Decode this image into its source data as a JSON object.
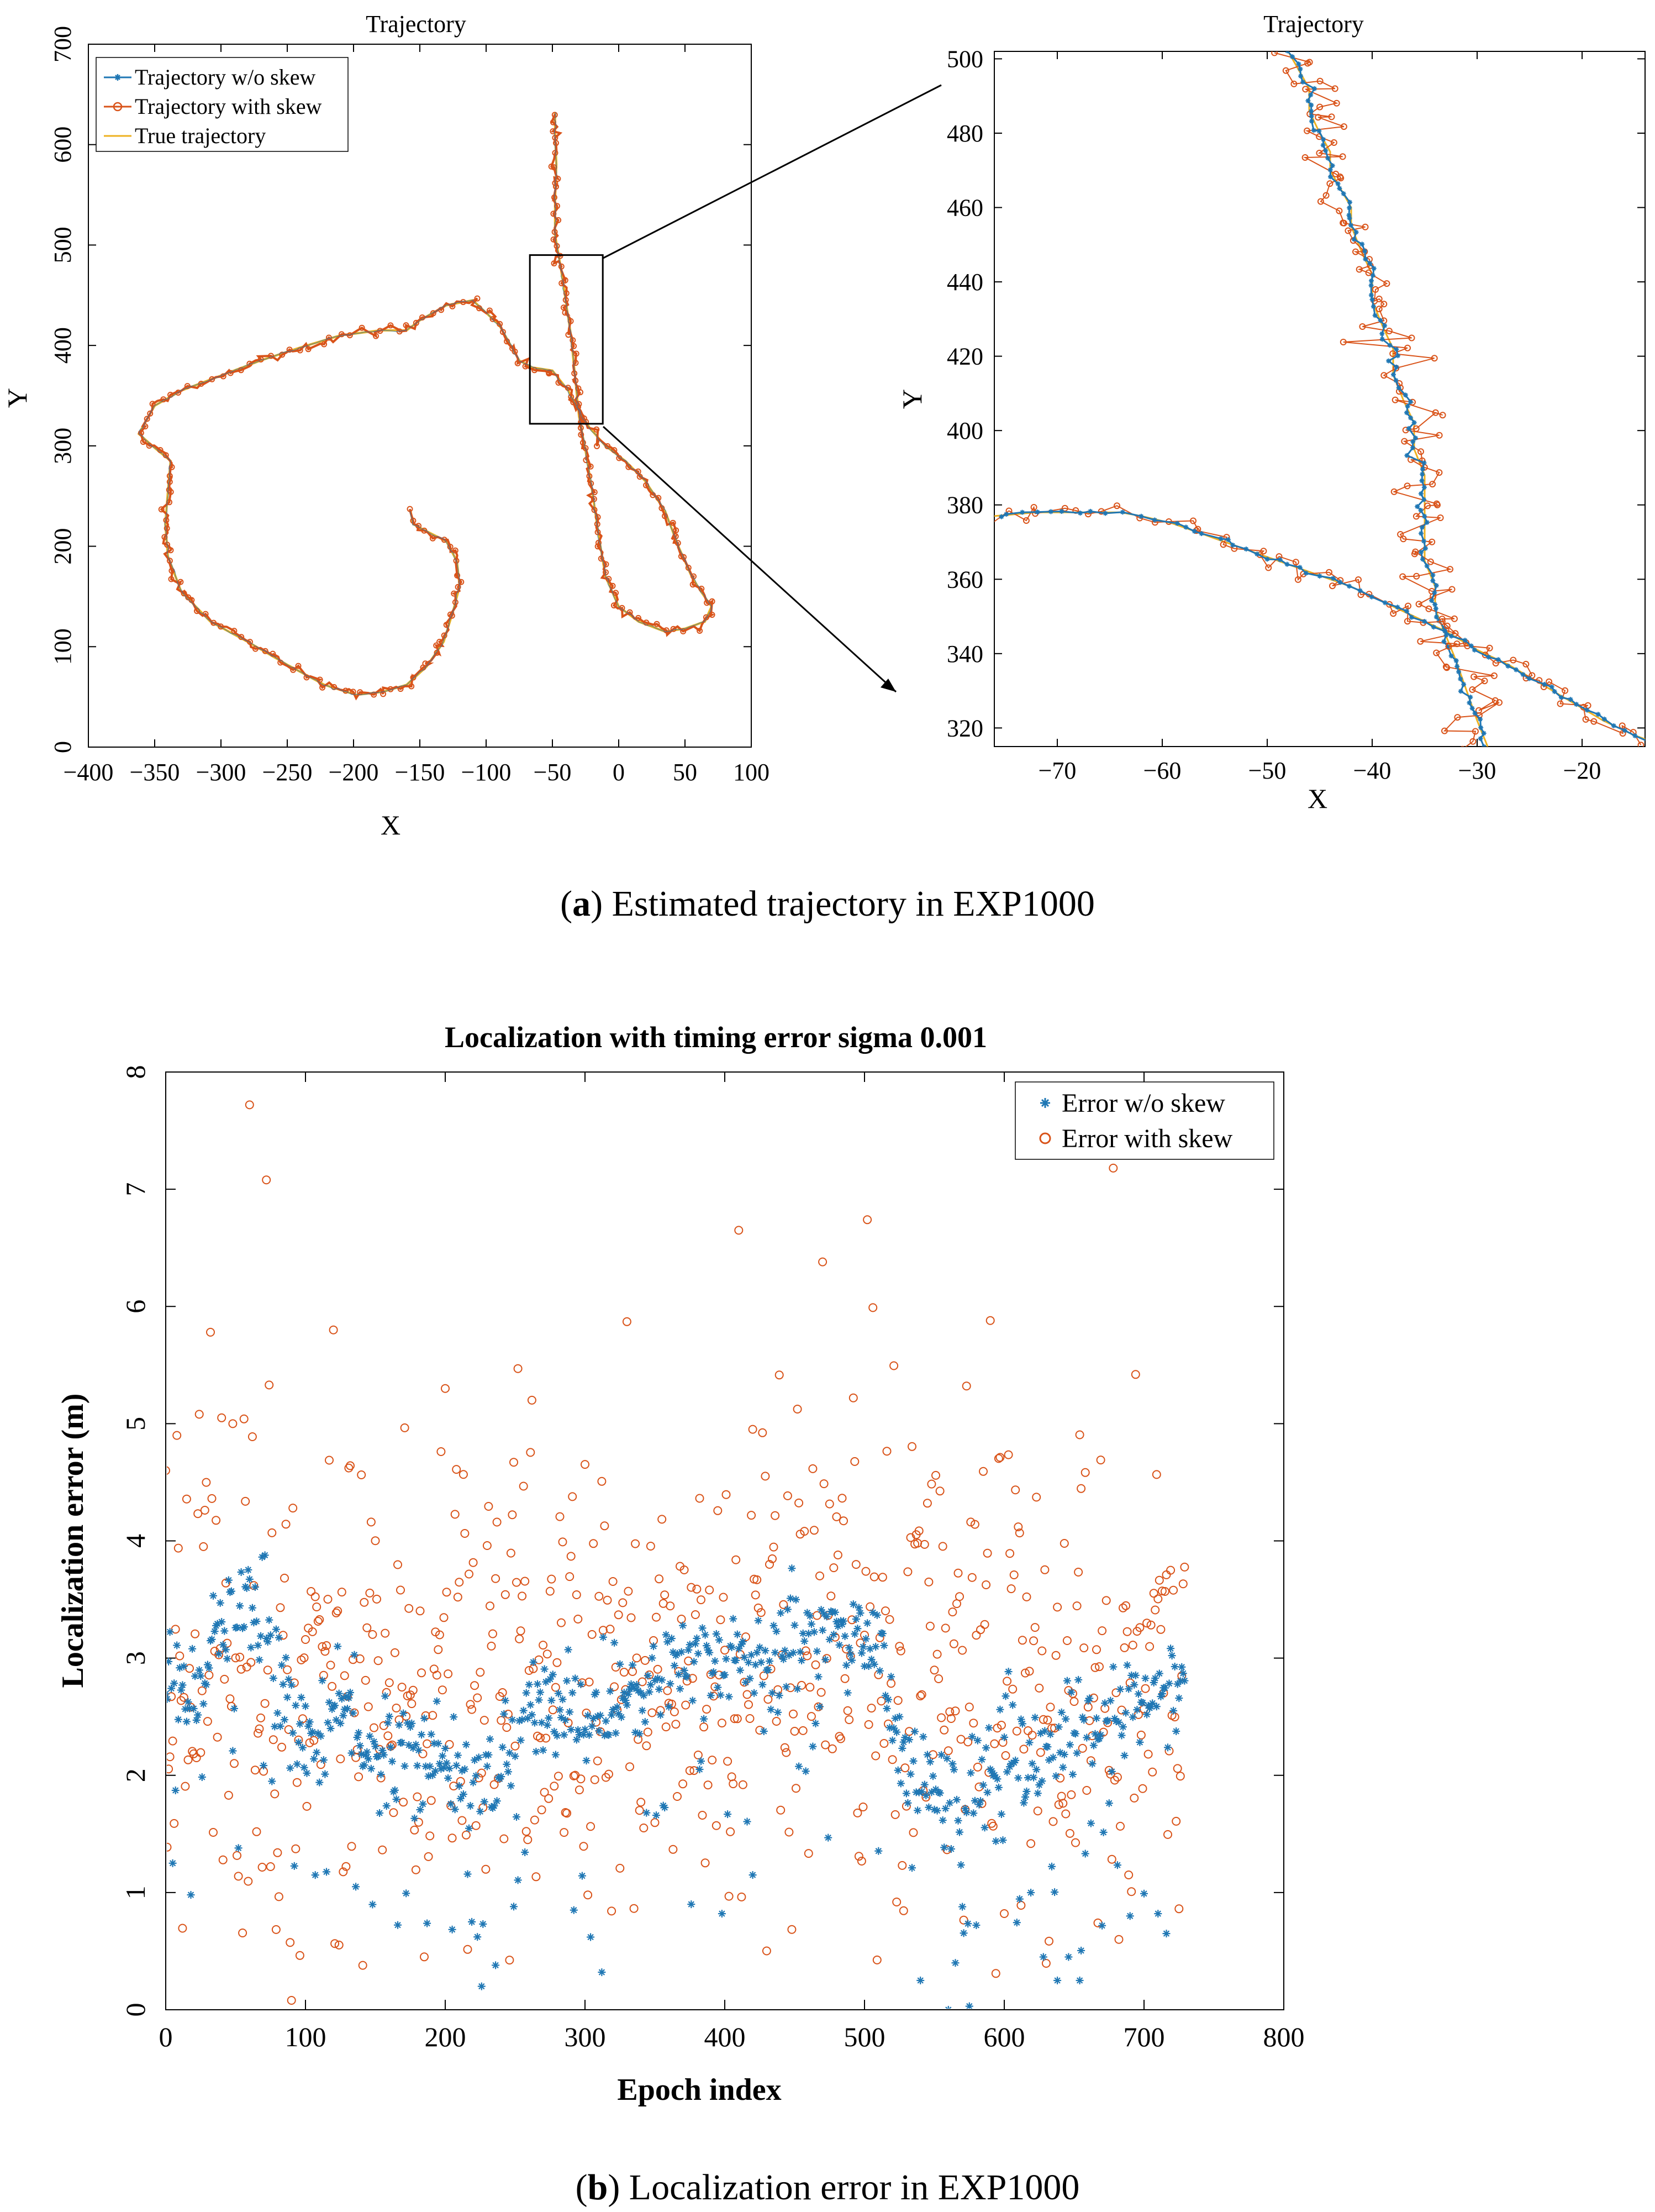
{
  "captions": {
    "a_letter": "a",
    "a_text": " Estimated trajectory in EXP1000",
    "b_letter": "b",
    "b_text": " Localization error in EXP1000"
  },
  "colors": {
    "wo_skew": "#1f77b4",
    "with_skew": "#d95319",
    "true_traj": "#edb120",
    "axes": "#000000"
  },
  "chart_data": [
    {
      "id": "trajectory-full",
      "type": "line",
      "title": "Trajectory",
      "xlabel": "X",
      "ylabel": "Y",
      "xlim": [
        -400,
        100
      ],
      "ylim": [
        0,
        700
      ],
      "xticks": [
        -400,
        -350,
        -300,
        -250,
        -200,
        -150,
        -100,
        -50,
        0,
        50,
        100
      ],
      "yticks": [
        0,
        100,
        200,
        300,
        400,
        500,
        600,
        700
      ],
      "legend": [
        "Trajectory w/o skew",
        "Trajectory with skew",
        "True trajectory"
      ],
      "legend_position": "top-left",
      "zoom_box": {
        "x": [
          -67,
          -12
        ],
        "y": [
          322,
          490
        ]
      },
      "path": [
        [
          -157,
          235
        ],
        [
          -155,
          222
        ],
        [
          -145,
          215
        ],
        [
          -130,
          205
        ],
        [
          -122,
          185
        ],
        [
          -120,
          160
        ],
        [
          -125,
          135
        ],
        [
          -132,
          105
        ],
        [
          -145,
          80
        ],
        [
          -160,
          62
        ],
        [
          -178,
          55
        ],
        [
          -198,
          52
        ],
        [
          -222,
          62
        ],
        [
          -250,
          82
        ],
        [
          -280,
          105
        ],
        [
          -308,
          125
        ],
        [
          -330,
          155
        ],
        [
          -340,
          190
        ],
        [
          -342,
          222
        ],
        [
          -340,
          255
        ],
        [
          -338,
          285
        ],
        [
          -350,
          298
        ],
        [
          -362,
          312
        ],
        [
          -350,
          340
        ],
        [
          -330,
          355
        ],
        [
          -300,
          370
        ],
        [
          -270,
          385
        ],
        [
          -240,
          398
        ],
        [
          -210,
          410
        ],
        [
          -180,
          415
        ],
        [
          -160,
          415
        ],
        [
          -150,
          425
        ],
        [
          -130,
          440
        ],
        [
          -110,
          445
        ],
        [
          -90,
          420
        ],
        [
          -75,
          385
        ],
        [
          -65,
          378
        ],
        [
          -50,
          375
        ],
        [
          -38,
          355
        ],
        [
          -30,
          335
        ],
        [
          -22,
          318
        ],
        [
          -10,
          300
        ],
        [
          5,
          285
        ],
        [
          20,
          265
        ],
        [
          35,
          235
        ],
        [
          45,
          200
        ],
        [
          55,
          170
        ],
        [
          62,
          155
        ],
        [
          70,
          140
        ],
        [
          65,
          125
        ],
        [
          50,
          118
        ],
        [
          35,
          115
        ],
        [
          15,
          125
        ],
        [
          0,
          140
        ],
        [
          -10,
          170
        ],
        [
          -15,
          210
        ],
        [
          -20,
          255
        ],
        [
          -25,
          295
        ],
        [
          -30,
          330
        ],
        [
          -33,
          370
        ],
        [
          -36,
          410
        ],
        [
          -40,
          445
        ],
        [
          -44,
          480
        ],
        [
          -48,
          510
        ],
        [
          -48,
          545
        ],
        [
          -47,
          580
        ],
        [
          -48,
          610
        ],
        [
          -48,
          632
        ]
      ]
    },
    {
      "id": "trajectory-zoom",
      "type": "line",
      "title": "Trajectory",
      "xlabel": "X",
      "ylabel": "Y",
      "xlim": [
        -76,
        -14
      ],
      "ylim": [
        315,
        502
      ],
      "xticks": [
        -70,
        -60,
        -50,
        -40,
        -30,
        -20
      ],
      "yticks": [
        320,
        340,
        360,
        380,
        400,
        420,
        440,
        460,
        480,
        500
      ],
      "vertical_path": [
        [
          -29,
          315
        ],
        [
          -30,
          322
        ],
        [
          -31,
          330
        ],
        [
          -32,
          338
        ],
        [
          -33,
          345
        ],
        [
          -34,
          352
        ],
        [
          -34,
          358
        ],
        [
          -35,
          365
        ],
        [
          -35,
          372
        ],
        [
          -35,
          380
        ],
        [
          -35,
          388
        ],
        [
          -36,
          395
        ],
        [
          -36,
          402
        ],
        [
          -37,
          408
        ],
        [
          -38,
          415
        ],
        [
          -38,
          422
        ],
        [
          -39,
          428
        ],
        [
          -40,
          435
        ],
        [
          -40,
          442
        ],
        [
          -41,
          448
        ],
        [
          -42,
          455
        ],
        [
          -42,
          460
        ],
        [
          -43,
          465
        ],
        [
          -44,
          470
        ],
        [
          -44,
          475
        ],
        [
          -45,
          480
        ],
        [
          -46,
          486
        ],
        [
          -46,
          492
        ],
        [
          -47,
          497
        ],
        [
          -48,
          502
        ]
      ],
      "diagonal_path": [
        [
          -76,
          377
        ],
        [
          -72,
          378
        ],
        [
          -68,
          378
        ],
        [
          -64,
          378
        ],
        [
          -62,
          377
        ],
        [
          -59,
          375
        ],
        [
          -56,
          372
        ],
        [
          -52,
          368
        ],
        [
          -48,
          364
        ],
        [
          -45,
          361
        ],
        [
          -42,
          358
        ],
        [
          -39,
          354
        ],
        [
          -36,
          350
        ],
        [
          -33,
          346
        ],
        [
          -30,
          341
        ],
        [
          -27,
          337
        ],
        [
          -24,
          332
        ],
        [
          -21,
          327
        ],
        [
          -18,
          322
        ],
        [
          -15,
          318
        ],
        [
          -14,
          317
        ]
      ]
    },
    {
      "id": "localization-error",
      "type": "scatter",
      "title": "Localization with timing error sigma 0.001",
      "xlabel": "Epoch index",
      "ylabel": "Localization error (m)",
      "xlim": [
        0,
        800
      ],
      "ylim": [
        0,
        8
      ],
      "xticks": [
        0,
        100,
        200,
        300,
        400,
        500,
        600,
        700,
        800
      ],
      "yticks": [
        0,
        1,
        2,
        3,
        4,
        5,
        6,
        7,
        8
      ],
      "legend": [
        "Error w/o skew",
        "Error with skew"
      ],
      "legend_position": "top-right",
      "n_points": 730,
      "series": [
        {
          "name": "Error w/o skew",
          "marker": "asterisk",
          "trend": [
            [
              0,
              2.7
            ],
            [
              20,
              2.9
            ],
            [
              40,
              3.3
            ],
            [
              70,
              3.4
            ],
            [
              90,
              2.4
            ],
            [
              110,
              2.3
            ],
            [
              130,
              2.6
            ],
            [
              150,
              2.1
            ],
            [
              180,
              2.2
            ],
            [
              210,
              2.0
            ],
            [
              240,
              2.1
            ],
            [
              260,
              2.6
            ],
            [
              290,
              2.5
            ],
            [
              320,
              2.6
            ],
            [
              350,
              2.8
            ],
            [
              380,
              3.0
            ],
            [
              420,
              3.0
            ],
            [
              450,
              3.2
            ],
            [
              480,
              3.2
            ],
            [
              510,
              3.1
            ],
            [
              530,
              2.0
            ],
            [
              560,
              1.8
            ],
            [
              590,
              2.0
            ],
            [
              620,
              2.1
            ],
            [
              650,
              2.4
            ],
            [
              680,
              2.5
            ],
            [
              700,
              2.6
            ],
            [
              730,
              2.8
            ]
          ],
          "outliers": [
            [
              5,
              1.25
            ],
            [
              18,
              0.98
            ],
            [
              52,
              1.38
            ],
            [
              136,
              1.05
            ],
            [
              219,
              0.75
            ],
            [
              226,
              0.2
            ],
            [
              236,
              0.38
            ],
            [
              249,
              0.88
            ],
            [
              292,
              0.85
            ],
            [
              304,
              0.62
            ],
            [
              312,
              0.32
            ],
            [
              376,
              0.9
            ],
            [
              398,
              0.82
            ],
            [
              420,
              1.15
            ],
            [
              540,
              0.25
            ],
            [
              560,
              0.0
            ],
            [
              565,
              0.4
            ],
            [
              575,
              0.03
            ],
            [
              628,
              0.45
            ],
            [
              638,
              0.25
            ],
            [
              646,
              0.45
            ],
            [
              654,
              0.25
            ],
            [
              690,
              0.8
            ],
            [
              710,
              0.82
            ],
            [
              716,
              0.65
            ]
          ]
        },
        {
          "name": "Error with skew",
          "marker": "circle",
          "mean": 2.7,
          "spread": 1.0,
          "peaks": [
            [
              0,
              4.6
            ],
            [
              8,
              4.9
            ],
            [
              24,
              5.08
            ],
            [
              32,
              5.78
            ],
            [
              40,
              5.05
            ],
            [
              48,
              5.0
            ],
            [
              60,
              7.72
            ],
            [
              72,
              7.08
            ],
            [
              74,
              5.33
            ],
            [
              90,
              0.08
            ],
            [
              120,
              5.8
            ],
            [
              200,
              5.3
            ],
            [
              230,
              3.96
            ],
            [
              252,
              5.47
            ],
            [
              262,
              5.2
            ],
            [
              330,
              5.87
            ],
            [
              410,
              6.65
            ],
            [
              470,
              6.38
            ],
            [
              502,
              6.74
            ],
            [
              506,
              5.99
            ],
            [
              590,
              5.88
            ],
            [
              678,
              7.18
            ],
            [
              694,
              5.42
            ],
            [
              682,
              0.6
            ]
          ]
        }
      ]
    }
  ]
}
